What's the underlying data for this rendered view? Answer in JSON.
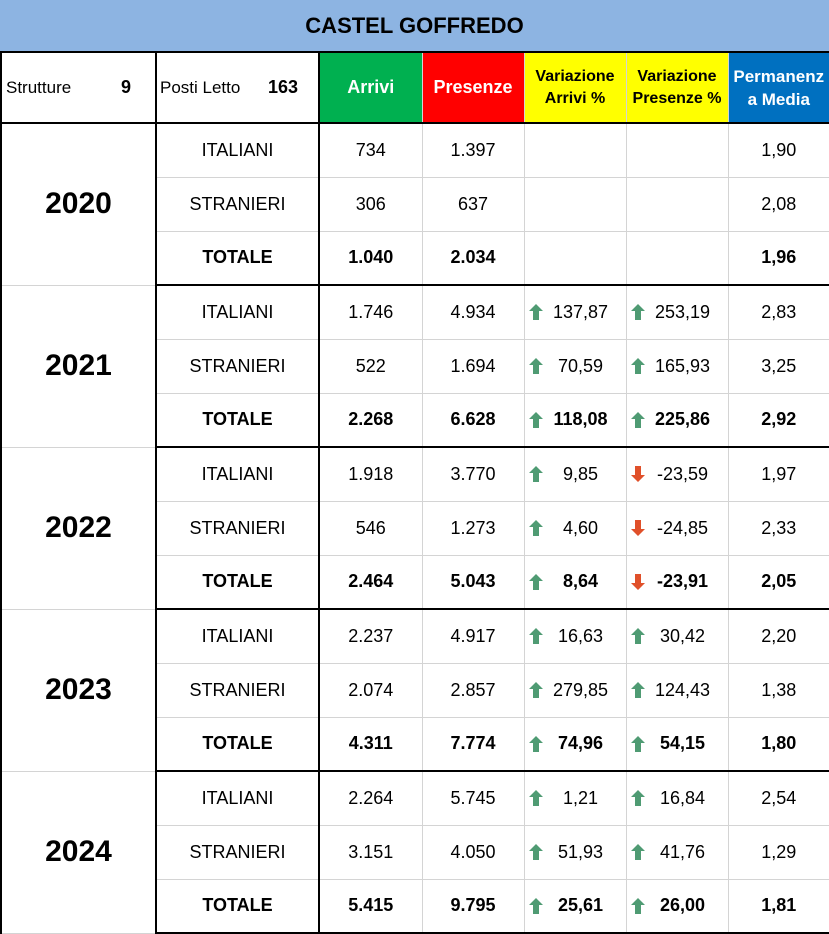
{
  "title": "CASTEL GOFFREDO",
  "header": {
    "strutture_label": "Strutture",
    "strutture_value": "9",
    "posti_label": "Posti Letto",
    "posti_value": "163",
    "arrivi": "Arrivi",
    "presenze": "Presenze",
    "var_arrivi_l1": "Variazione",
    "var_arrivi_l2": "Arrivi %",
    "var_presenze_l1": "Variazione",
    "var_presenze_l2": "Presenze %",
    "perm_l1": "Permanenz",
    "perm_l2": "a Media"
  },
  "colors": {
    "title_bg": "#8db4e2",
    "arrivi_bg": "#00b050",
    "presenze_bg": "#ff0000",
    "variazione_bg": "#ffff00",
    "permanenza_bg": "#0070c0",
    "up_arrow": "#4f9b73",
    "down_arrow": "#e0502a"
  },
  "years": [
    {
      "year": "2020",
      "rows": [
        {
          "label": "ITALIANI",
          "arrivi": "734",
          "presenze": "1.397",
          "var_arrivi": "",
          "var_arrivi_dir": "",
          "var_presenze": "",
          "var_presenze_dir": "",
          "perm": "1,90"
        },
        {
          "label": "STRANIERI",
          "arrivi": "306",
          "presenze": "637",
          "var_arrivi": "",
          "var_arrivi_dir": "",
          "var_presenze": "",
          "var_presenze_dir": "",
          "perm": "2,08"
        },
        {
          "label": "TOTALE",
          "arrivi": "1.040",
          "presenze": "2.034",
          "var_arrivi": "",
          "var_arrivi_dir": "",
          "var_presenze": "",
          "var_presenze_dir": "",
          "perm": "1,96"
        }
      ]
    },
    {
      "year": "2021",
      "rows": [
        {
          "label": "ITALIANI",
          "arrivi": "1.746",
          "presenze": "4.934",
          "var_arrivi": "137,87",
          "var_arrivi_dir": "up",
          "var_presenze": "253,19",
          "var_presenze_dir": "up",
          "perm": "2,83"
        },
        {
          "label": "STRANIERI",
          "arrivi": "522",
          "presenze": "1.694",
          "var_arrivi": "70,59",
          "var_arrivi_dir": "up",
          "var_presenze": "165,93",
          "var_presenze_dir": "up",
          "perm": "3,25"
        },
        {
          "label": "TOTALE",
          "arrivi": "2.268",
          "presenze": "6.628",
          "var_arrivi": "118,08",
          "var_arrivi_dir": "up",
          "var_presenze": "225,86",
          "var_presenze_dir": "up",
          "perm": "2,92"
        }
      ]
    },
    {
      "year": "2022",
      "rows": [
        {
          "label": "ITALIANI",
          "arrivi": "1.918",
          "presenze": "3.770",
          "var_arrivi": "9,85",
          "var_arrivi_dir": "up",
          "var_presenze": "-23,59",
          "var_presenze_dir": "down",
          "perm": "1,97"
        },
        {
          "label": "STRANIERI",
          "arrivi": "546",
          "presenze": "1.273",
          "var_arrivi": "4,60",
          "var_arrivi_dir": "up",
          "var_presenze": "-24,85",
          "var_presenze_dir": "down",
          "perm": "2,33"
        },
        {
          "label": "TOTALE",
          "arrivi": "2.464",
          "presenze": "5.043",
          "var_arrivi": "8,64",
          "var_arrivi_dir": "up",
          "var_presenze": "-23,91",
          "var_presenze_dir": "down",
          "perm": "2,05"
        }
      ]
    },
    {
      "year": "2023",
      "rows": [
        {
          "label": "ITALIANI",
          "arrivi": "2.237",
          "presenze": "4.917",
          "var_arrivi": "16,63",
          "var_arrivi_dir": "up",
          "var_presenze": "30,42",
          "var_presenze_dir": "up",
          "perm": "2,20"
        },
        {
          "label": "STRANIERI",
          "arrivi": "2.074",
          "presenze": "2.857",
          "var_arrivi": "279,85",
          "var_arrivi_dir": "up",
          "var_presenze": "124,43",
          "var_presenze_dir": "up",
          "perm": "1,38"
        },
        {
          "label": "TOTALE",
          "arrivi": "4.311",
          "presenze": "7.774",
          "var_arrivi": "74,96",
          "var_arrivi_dir": "up",
          "var_presenze": "54,15",
          "var_presenze_dir": "up",
          "perm": "1,80"
        }
      ]
    },
    {
      "year": "2024",
      "rows": [
        {
          "label": "ITALIANI",
          "arrivi": "2.264",
          "presenze": "5.745",
          "var_arrivi": "1,21",
          "var_arrivi_dir": "up",
          "var_presenze": "16,84",
          "var_presenze_dir": "up",
          "perm": "2,54"
        },
        {
          "label": "STRANIERI",
          "arrivi": "3.151",
          "presenze": "4.050",
          "var_arrivi": "51,93",
          "var_arrivi_dir": "up",
          "var_presenze": "41,76",
          "var_presenze_dir": "up",
          "perm": "1,29"
        },
        {
          "label": "TOTALE",
          "arrivi": "5.415",
          "presenze": "9.795",
          "var_arrivi": "25,61",
          "var_arrivi_dir": "up",
          "var_presenze": "26,00",
          "var_presenze_dir": "up",
          "perm": "1,81"
        }
      ]
    }
  ]
}
